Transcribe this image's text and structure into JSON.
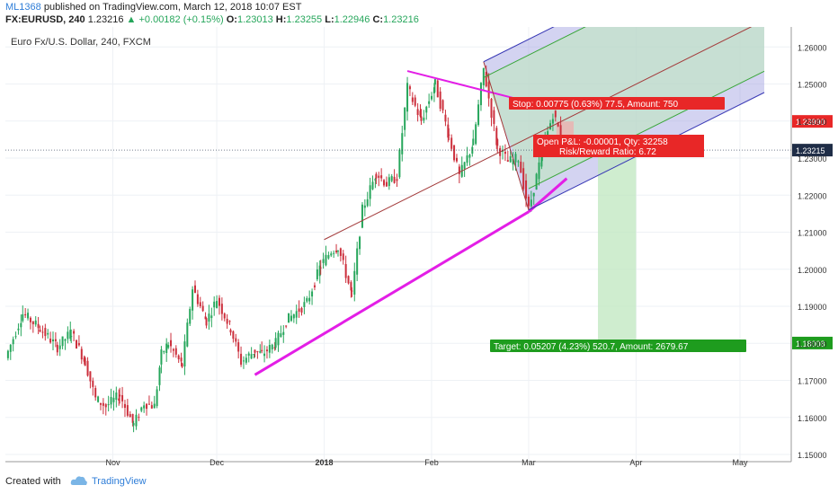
{
  "header": {
    "user": "ML1368",
    "published": "published on TradingView.com, March 12, 2018 10:07 EST",
    "symbol": "FX:EURUSD, 240",
    "last": "1.23216",
    "change": "▲ +0.00182 (+0.15%)",
    "o_label": "O:",
    "o": "1.23013",
    "h_label": "H:",
    "h": "1.23255",
    "l_label": "L:",
    "l": "1.22946",
    "c_label": "C:",
    "c": "1.23216"
  },
  "chart_data": {
    "type": "candlestick",
    "title": "Euro Fx/U.S. Dollar, 240, FXCM",
    "ylim": [
      1.15,
      1.262
    ],
    "yticks": [
      "1.15000",
      "1.16000",
      "1.17000",
      "1.18000",
      "1.19000",
      "1.20000",
      "1.21000",
      "1.22000",
      "1.23000",
      "1.24000",
      "1.25000",
      "1.26000"
    ],
    "xticks": [
      "Nov",
      "Dec",
      "2018",
      "Feb",
      "Mar",
      "Apr",
      "May"
    ],
    "xrange": [
      "2017-10-01",
      "2018-05-08"
    ],
    "last_price": "1.23215",
    "price_labels": {
      "stop": "1.23990",
      "target": "1.18008"
    },
    "price_path": [
      [
        "2017-10-01",
        1.176
      ],
      [
        "2017-10-06",
        1.188
      ],
      [
        "2017-10-11",
        1.184
      ],
      [
        "2017-10-16",
        1.179
      ],
      [
        "2017-10-20",
        1.183
      ],
      [
        "2017-10-24",
        1.175
      ],
      [
        "2017-10-27",
        1.165
      ],
      [
        "2017-10-30",
        1.163
      ],
      [
        "2017-11-03",
        1.166
      ],
      [
        "2017-11-07",
        1.158
      ],
      [
        "2017-11-10",
        1.164
      ],
      [
        "2017-11-13",
        1.163
      ],
      [
        "2017-11-15",
        1.177
      ],
      [
        "2017-11-17",
        1.18
      ],
      [
        "2017-11-21",
        1.174
      ],
      [
        "2017-11-24",
        1.195
      ],
      [
        "2017-11-28",
        1.186
      ],
      [
        "2017-12-01",
        1.192
      ],
      [
        "2017-12-05",
        1.184
      ],
      [
        "2017-12-08",
        1.175
      ],
      [
        "2017-12-12",
        1.178
      ],
      [
        "2017-12-14",
        1.177
      ],
      [
        "2017-12-18",
        1.18
      ],
      [
        "2017-12-21",
        1.186
      ],
      [
        "2017-12-27",
        1.191
      ],
      [
        "2017-12-31",
        1.201
      ],
      [
        "2018-01-03",
        1.205
      ],
      [
        "2018-01-05",
        1.206
      ],
      [
        "2018-01-09",
        1.193
      ],
      [
        "2018-01-12",
        1.216
      ],
      [
        "2018-01-16",
        1.226
      ],
      [
        "2018-01-19",
        1.223
      ],
      [
        "2018-01-22",
        1.225
      ],
      [
        "2018-01-25",
        1.249
      ],
      [
        "2018-01-29",
        1.24
      ],
      [
        "2018-02-02",
        1.25
      ],
      [
        "2018-02-06",
        1.236
      ],
      [
        "2018-02-09",
        1.225
      ],
      [
        "2018-02-13",
        1.234
      ],
      [
        "2018-02-16",
        1.254
      ],
      [
        "2018-02-20",
        1.233
      ],
      [
        "2018-02-23",
        1.229
      ],
      [
        "2018-02-26",
        1.23
      ],
      [
        "2018-03-01",
        1.216
      ],
      [
        "2018-03-05",
        1.232
      ],
      [
        "2018-03-08",
        1.242
      ],
      [
        "2018-03-12",
        1.232
      ]
    ],
    "annotations": {
      "stop_text": "Stop: 0.00775 (0.63%) 77.5, Amount: 750",
      "pnl_text": "Open P&L: -0.00001, Qty: 32258",
      "rr_text": "Risk/Reward Ratio: 6.72",
      "target_text": "Target: 0.05207 (4.23%) 520.7, Amount: 2679.67"
    }
  },
  "footer": {
    "created": "Created with",
    "brand": "TradingView"
  },
  "colors": {
    "up": "#26a65b",
    "down": "#cc2f3c",
    "trend": "#e31ee6",
    "median": "#a33a3a",
    "fork_band": "#9d9ddf",
    "fork_line": "#3838b5",
    "inner_line": "#3aa63a",
    "target_zone": "#bfe7bf",
    "stop_zone": "#f2aaaa",
    "stop_label": "#e82727",
    "target_label": "#1e9c1e",
    "last_label": "#1f2d47"
  }
}
